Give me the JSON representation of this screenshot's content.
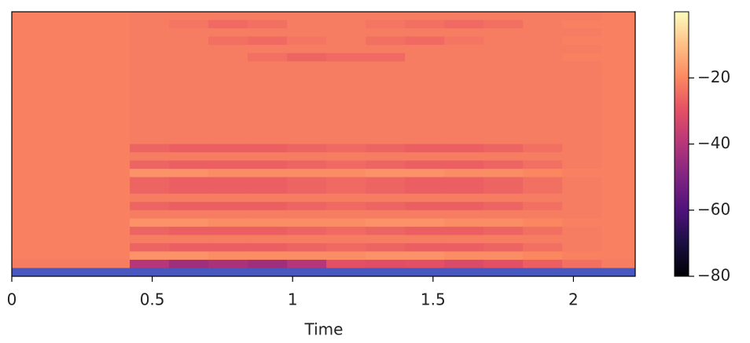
{
  "chart_data": {
    "type": "heatmap",
    "xlabel": "Time",
    "x_edges": [
      0,
      0.14,
      0.28,
      0.42,
      0.56,
      0.7,
      0.84,
      0.98,
      1.12,
      1.26,
      1.4,
      1.54,
      1.68,
      1.82,
      1.96,
      2.1,
      2.22
    ],
    "xlim": [
      0,
      2.22
    ],
    "xticks": [
      0,
      0.5,
      1,
      1.5,
      2
    ],
    "cmap": "magma",
    "cmap_under": "#4858bf",
    "zlim": [
      -80,
      0
    ],
    "zticks": [
      {
        "value": -80,
        "label": "−80"
      },
      {
        "value": -60,
        "label": "−60"
      },
      {
        "value": -40,
        "label": "−40"
      },
      {
        "value": -20,
        "label": "−20"
      }
    ],
    "z": [
      [
        -21,
        -21,
        -21,
        -22,
        -22,
        -22,
        -22,
        -22,
        -22,
        -22,
        -22,
        -22,
        -22,
        -22,
        -22,
        -21
      ],
      [
        -21,
        -21,
        -21,
        -22,
        -23,
        -25,
        -24,
        -22,
        -22,
        -23,
        -24,
        -25,
        -24,
        -22,
        -21,
        -21
      ],
      [
        -21,
        -21,
        -21,
        -22,
        -22,
        -22,
        -22,
        -22,
        -22,
        -22,
        -22,
        -22,
        -22,
        -22,
        -22,
        -21
      ],
      [
        -21,
        -21,
        -21,
        -22,
        -22,
        -24,
        -25,
        -23,
        -22,
        -24,
        -25,
        -23,
        -22,
        -22,
        -21,
        -21
      ],
      [
        -21,
        -21,
        -21,
        -22,
        -22,
        -22,
        -22,
        -22,
        -22,
        -22,
        -22,
        -22,
        -22,
        -22,
        -22,
        -21
      ],
      [
        -21,
        -21,
        -21,
        -22,
        -22,
        -22,
        -24,
        -26,
        -25,
        -25,
        -22,
        -22,
        -22,
        -22,
        -21,
        -21
      ],
      [
        -21,
        -21,
        -21,
        -22,
        -22,
        -22,
        -22,
        -22,
        -22,
        -22,
        -22,
        -22,
        -22,
        -22,
        -22,
        -21
      ],
      [
        -21,
        -21,
        -21,
        -22,
        -22,
        -22,
        -22,
        -22,
        -22,
        -22,
        -22,
        -22,
        -22,
        -22,
        -22,
        -21
      ],
      [
        -21,
        -21,
        -21,
        -22,
        -22,
        -22,
        -22,
        -22,
        -22,
        -22,
        -22,
        -22,
        -22,
        -22,
        -22,
        -21
      ],
      [
        -21,
        -21,
        -21,
        -22,
        -22,
        -22,
        -22,
        -22,
        -22,
        -22,
        -22,
        -22,
        -22,
        -22,
        -22,
        -21
      ],
      [
        -21,
        -21,
        -21,
        -22,
        -22,
        -22,
        -22,
        -22,
        -22,
        -22,
        -22,
        -22,
        -22,
        -22,
        -22,
        -21
      ],
      [
        -21,
        -21,
        -21,
        -22,
        -22,
        -22,
        -22,
        -22,
        -22,
        -22,
        -22,
        -22,
        -22,
        -22,
        -22,
        -21
      ],
      [
        -21,
        -21,
        -21,
        -22,
        -22,
        -22,
        -22,
        -22,
        -22,
        -22,
        -22,
        -22,
        -22,
        -22,
        -22,
        -21
      ],
      [
        -21,
        -21,
        -21,
        -22,
        -22,
        -22,
        -22,
        -22,
        -22,
        -22,
        -22,
        -22,
        -22,
        -22,
        -22,
        -21
      ],
      [
        -21,
        -21,
        -21,
        -22,
        -22,
        -22,
        -22,
        -22,
        -22,
        -22,
        -22,
        -22,
        -22,
        -22,
        -22,
        -21
      ],
      [
        -21,
        -21,
        -21,
        -22,
        -22,
        -22,
        -22,
        -22,
        -22,
        -22,
        -22,
        -22,
        -22,
        -22,
        -22,
        -21
      ],
      [
        -21,
        -21,
        -21,
        -26,
        -27,
        -27,
        -27,
        -26,
        -25,
        -26,
        -27,
        -27,
        -26,
        -24,
        -22,
        -21
      ],
      [
        -21,
        -21,
        -21,
        -22,
        -22,
        -22,
        -22,
        -22,
        -22,
        -22,
        -22,
        -22,
        -22,
        -22,
        -22,
        -21
      ],
      [
        -21,
        -21,
        -21,
        -26,
        -27,
        -27,
        -27,
        -26,
        -25,
        -26,
        -27,
        -27,
        -26,
        -24,
        -22,
        -21
      ],
      [
        -21,
        -21,
        -21,
        -18,
        -18,
        -19,
        -19,
        -19,
        -19,
        -18,
        -18,
        -19,
        -19,
        -20,
        -21,
        -21
      ],
      [
        -21,
        -21,
        -21,
        -26,
        -27,
        -27,
        -27,
        -26,
        -25,
        -26,
        -27,
        -27,
        -26,
        -24,
        -22,
        -21
      ],
      [
        -21,
        -21,
        -21,
        -26,
        -27,
        -27,
        -27,
        -26,
        -25,
        -26,
        -27,
        -27,
        -26,
        -24,
        -22,
        -21
      ],
      [
        -21,
        -21,
        -21,
        -22,
        -22,
        -22,
        -22,
        -22,
        -22,
        -22,
        -22,
        -22,
        -22,
        -22,
        -22,
        -21
      ],
      [
        -21,
        -21,
        -21,
        -26,
        -27,
        -27,
        -27,
        -26,
        -25,
        -26,
        -27,
        -27,
        -26,
        -24,
        -22,
        -21
      ],
      [
        -21,
        -21,
        -21,
        -22,
        -22,
        -22,
        -22,
        -22,
        -22,
        -22,
        -22,
        -22,
        -22,
        -22,
        -22,
        -21
      ],
      [
        -21,
        -21,
        -21,
        -18,
        -18,
        -19,
        -19,
        -19,
        -19,
        -18,
        -18,
        -19,
        -19,
        -20,
        -21,
        -21
      ],
      [
        -21,
        -21,
        -21,
        -26,
        -27,
        -27,
        -27,
        -26,
        -25,
        -26,
        -27,
        -27,
        -26,
        -24,
        -22,
        -21
      ],
      [
        -21,
        -21,
        -21,
        -22,
        -22,
        -22,
        -22,
        -22,
        -22,
        -22,
        -22,
        -22,
        -22,
        -22,
        -22,
        -21
      ],
      [
        -21,
        -21,
        -21,
        -26,
        -27,
        -27,
        -27,
        -26,
        -25,
        -26,
        -27,
        -27,
        -26,
        -24,
        -22,
        -21
      ],
      [
        -21,
        -21,
        -21,
        -18,
        -18,
        -19,
        -19,
        -19,
        -19,
        -18,
        -18,
        -19,
        -19,
        -20,
        -21,
        -21
      ],
      [
        -22,
        -22,
        -22,
        -40,
        -44,
        -42,
        -44,
        -40,
        -30,
        -31,
        -30,
        -32,
        -30,
        -27,
        -24,
        -22
      ],
      [
        -100,
        -100,
        -100,
        -100,
        -100,
        -100,
        -100,
        -100,
        -100,
        -100,
        -100,
        -100,
        -100,
        -100,
        -100,
        -100
      ]
    ]
  }
}
